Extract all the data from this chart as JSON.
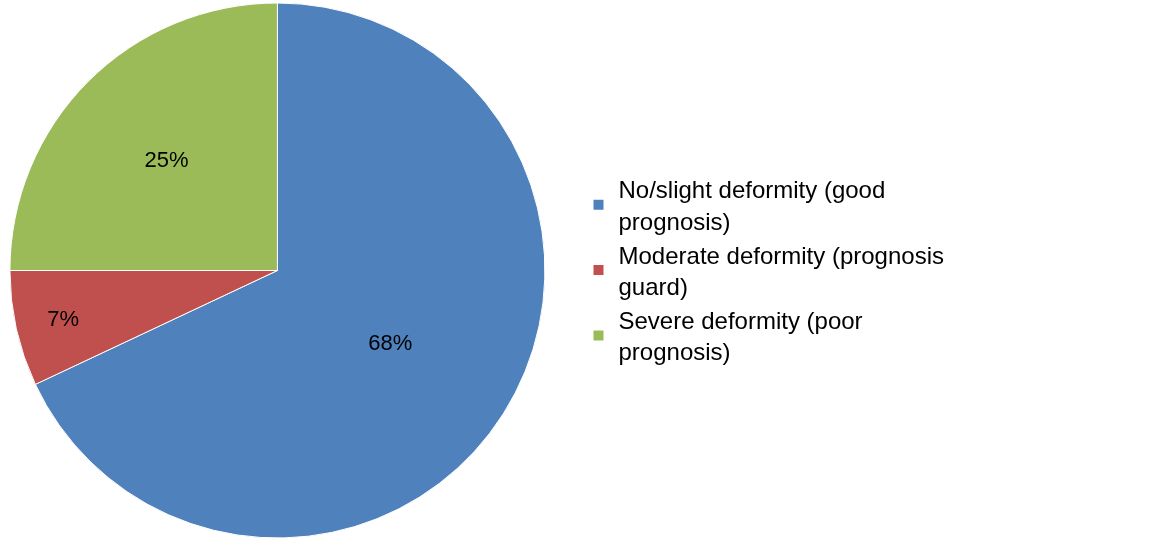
{
  "chart_data": {
    "type": "pie",
    "categories": [
      "No/slight deformity (good prognosis)",
      "Moderate deformity (prognosis guard)",
      "Severe deformity (poor prognosis)"
    ],
    "values": [
      68,
      7,
      25
    ],
    "value_labels": [
      "68%",
      "7%",
      "25%"
    ],
    "colors": [
      "#4f81bd",
      "#c0504d",
      "#9bbb59"
    ],
    "legend": "right"
  }
}
